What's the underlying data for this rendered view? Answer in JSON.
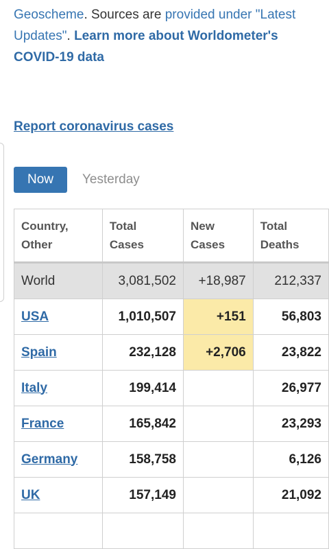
{
  "intro": {
    "link1": "Geoscheme",
    "text1": ". Sources are ",
    "link2": "provided under \"Latest Updates\"",
    "text2": ". ",
    "link3": "Learn more about Worldometer's COVID-19 data"
  },
  "report_link": "Report coronavirus cases",
  "tabs": {
    "now": "Now",
    "yesterday": "Yesterday"
  },
  "table": {
    "headers": [
      [
        "Country,",
        "Other"
      ],
      [
        "Total",
        "Cases"
      ],
      [
        "New",
        "Cases"
      ],
      [
        "Total",
        "Deaths"
      ]
    ],
    "world": {
      "country": "World",
      "total_cases": "3,081,502",
      "new_cases": "+18,987",
      "total_deaths": "212,337"
    },
    "rows": [
      {
        "country": "USA",
        "total_cases": "1,010,507",
        "new_cases": "+151",
        "total_deaths": "56,803"
      },
      {
        "country": "Spain",
        "total_cases": "232,128",
        "new_cases": "+2,706",
        "total_deaths": "23,822"
      },
      {
        "country": "Italy",
        "total_cases": "199,414",
        "new_cases": "",
        "total_deaths": "26,977"
      },
      {
        "country": "France",
        "total_cases": "165,842",
        "new_cases": "",
        "total_deaths": "23,293"
      },
      {
        "country": "Germany",
        "total_cases": "158,758",
        "new_cases": "",
        "total_deaths": "6,126"
      },
      {
        "country": "UK",
        "total_cases": "157,149",
        "new_cases": "",
        "total_deaths": "21,092"
      }
    ]
  },
  "colors": {
    "link": "#3675b2",
    "tab_active": "#3675b2",
    "highlight_new": "#fbeaa8",
    "world_row": "#e1e1e1"
  }
}
